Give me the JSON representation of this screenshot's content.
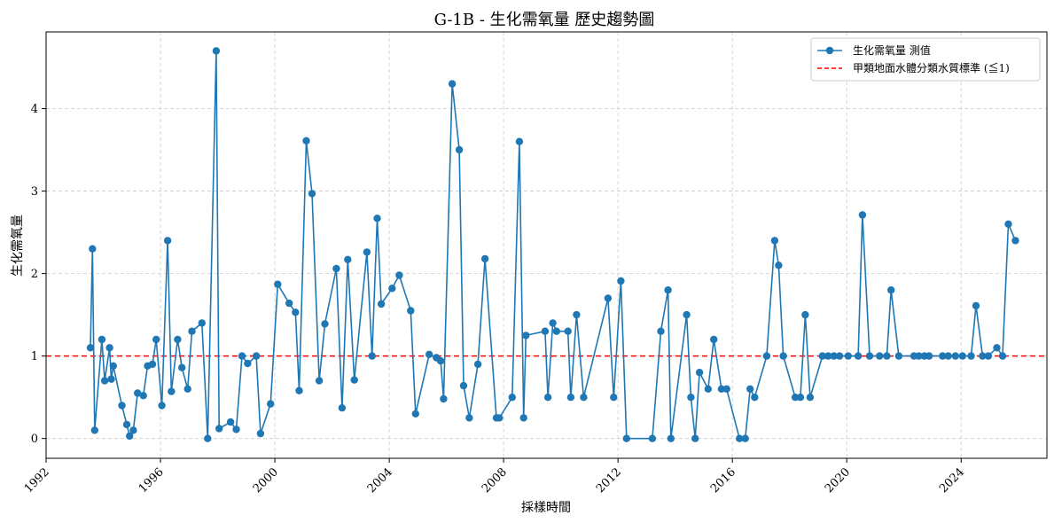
{
  "chart_data": {
    "type": "line",
    "title": "G-1B - 生化需氧量 歷史趨勢圖",
    "xlabel": "採樣時間",
    "ylabel": "生化需氧量",
    "x_ticks": [
      "1992",
      "1996",
      "2000",
      "2004",
      "2008",
      "2012",
      "2016",
      "2020",
      "2024"
    ],
    "y_ticks": [
      0,
      1,
      2,
      3,
      4
    ],
    "xlim": [
      1992.0,
      2027.0
    ],
    "ylim": [
      -0.24,
      4.93
    ],
    "grid": true,
    "legend_position": "top-right",
    "series": [
      {
        "name": "生化需氧量 測值",
        "color": "#1f77b4",
        "marker": "circle",
        "points": [
          [
            1993.55,
            1.1
          ],
          [
            1993.62,
            2.3
          ],
          [
            1993.7,
            0.1
          ],
          [
            1993.95,
            1.2
          ],
          [
            1994.05,
            0.7
          ],
          [
            1994.22,
            1.1
          ],
          [
            1994.28,
            0.72
          ],
          [
            1994.35,
            0.88
          ],
          [
            1994.65,
            0.4
          ],
          [
            1994.82,
            0.17
          ],
          [
            1994.92,
            0.03
          ],
          [
            1995.05,
            0.1
          ],
          [
            1995.2,
            0.55
          ],
          [
            1995.4,
            0.52
          ],
          [
            1995.55,
            0.88
          ],
          [
            1995.72,
            0.9
          ],
          [
            1995.85,
            1.2
          ],
          [
            1996.05,
            0.4
          ],
          [
            1996.25,
            2.4
          ],
          [
            1996.38,
            0.57
          ],
          [
            1996.6,
            1.2
          ],
          [
            1996.75,
            0.86
          ],
          [
            1996.95,
            0.6
          ],
          [
            1997.1,
            1.3
          ],
          [
            1997.45,
            1.4
          ],
          [
            1997.65,
            0.0
          ],
          [
            1997.95,
            4.7
          ],
          [
            1998.05,
            0.12
          ],
          [
            1998.45,
            0.2
          ],
          [
            1998.65,
            0.11
          ],
          [
            1998.85,
            1.0
          ],
          [
            1999.05,
            0.91
          ],
          [
            1999.35,
            1.0
          ],
          [
            1999.5,
            0.06
          ],
          [
            1999.85,
            0.42
          ],
          [
            2000.1,
            1.87
          ],
          [
            2000.5,
            1.64
          ],
          [
            2000.72,
            1.53
          ],
          [
            2000.85,
            0.58
          ],
          [
            2001.1,
            3.61
          ],
          [
            2001.3,
            2.97
          ],
          [
            2001.55,
            0.7
          ],
          [
            2001.75,
            1.39
          ],
          [
            2002.15,
            2.06
          ],
          [
            2002.35,
            0.37
          ],
          [
            2002.55,
            2.17
          ],
          [
            2002.78,
            0.71
          ],
          [
            2003.22,
            2.26
          ],
          [
            2003.4,
            1.0
          ],
          [
            2003.58,
            2.67
          ],
          [
            2003.72,
            1.63
          ],
          [
            2004.1,
            1.82
          ],
          [
            2004.35,
            1.98
          ],
          [
            2004.75,
            1.55
          ],
          [
            2004.92,
            0.3
          ],
          [
            2005.4,
            1.02
          ],
          [
            2005.65,
            0.98
          ],
          [
            2005.8,
            0.94
          ],
          [
            2005.9,
            0.48
          ],
          [
            2006.2,
            4.3
          ],
          [
            2006.45,
            3.5
          ],
          [
            2006.6,
            0.64
          ],
          [
            2006.8,
            0.25
          ],
          [
            2007.1,
            0.9
          ],
          [
            2007.35,
            2.18
          ],
          [
            2007.75,
            0.25
          ],
          [
            2007.85,
            0.25
          ],
          [
            2008.3,
            0.5
          ],
          [
            2008.55,
            3.6
          ],
          [
            2008.7,
            0.25
          ],
          [
            2008.78,
            1.25
          ],
          [
            2009.45,
            1.3
          ],
          [
            2009.55,
            0.5
          ],
          [
            2009.72,
            1.4
          ],
          [
            2009.85,
            1.3
          ],
          [
            2010.25,
            1.3
          ],
          [
            2010.35,
            0.5
          ],
          [
            2010.55,
            1.5
          ],
          [
            2010.8,
            0.5
          ],
          [
            2011.65,
            1.7
          ],
          [
            2011.85,
            0.5
          ],
          [
            2012.1,
            1.91
          ],
          [
            2012.3,
            0.0
          ],
          [
            2013.2,
            0.0
          ],
          [
            2013.5,
            1.3
          ],
          [
            2013.75,
            1.8
          ],
          [
            2013.85,
            0.0
          ],
          [
            2014.4,
            1.5
          ],
          [
            2014.55,
            0.5
          ],
          [
            2014.7,
            0.0
          ],
          [
            2014.85,
            0.8
          ],
          [
            2015.15,
            0.6
          ],
          [
            2015.35,
            1.2
          ],
          [
            2015.62,
            0.6
          ],
          [
            2015.8,
            0.6
          ],
          [
            2016.25,
            0.0
          ],
          [
            2016.45,
            0.0
          ],
          [
            2016.62,
            0.6
          ],
          [
            2016.78,
            0.5
          ],
          [
            2017.2,
            1.0
          ],
          [
            2017.48,
            2.4
          ],
          [
            2017.62,
            2.1
          ],
          [
            2017.78,
            1.0
          ],
          [
            2018.2,
            0.5
          ],
          [
            2018.38,
            0.5
          ],
          [
            2018.55,
            1.5
          ],
          [
            2018.72,
            0.5
          ],
          [
            2019.15,
            1.0
          ],
          [
            2019.35,
            1.0
          ],
          [
            2019.55,
            1.0
          ],
          [
            2019.75,
            1.0
          ],
          [
            2020.05,
            1.0
          ],
          [
            2020.4,
            1.0
          ],
          [
            2020.55,
            2.71
          ],
          [
            2020.8,
            1.0
          ],
          [
            2021.15,
            1.0
          ],
          [
            2021.4,
            1.0
          ],
          [
            2021.55,
            1.8
          ],
          [
            2021.82,
            1.0
          ],
          [
            2022.35,
            1.0
          ],
          [
            2022.52,
            1.0
          ],
          [
            2022.72,
            1.0
          ],
          [
            2022.88,
            1.0
          ],
          [
            2023.35,
            1.0
          ],
          [
            2023.55,
            1.0
          ],
          [
            2023.8,
            1.0
          ],
          [
            2024.05,
            1.0
          ],
          [
            2024.35,
            1.0
          ],
          [
            2024.52,
            1.61
          ],
          [
            2024.75,
            1.0
          ],
          [
            2024.95,
            1.0
          ],
          [
            2025.25,
            1.1
          ],
          [
            2025.45,
            1.0
          ],
          [
            2025.65,
            2.6
          ],
          [
            2025.9,
            2.4
          ]
        ]
      },
      {
        "name": "甲類地面水體分類水質標準 (≦1)",
        "color": "#ff0000",
        "style": "dashed",
        "y": 1
      }
    ]
  }
}
